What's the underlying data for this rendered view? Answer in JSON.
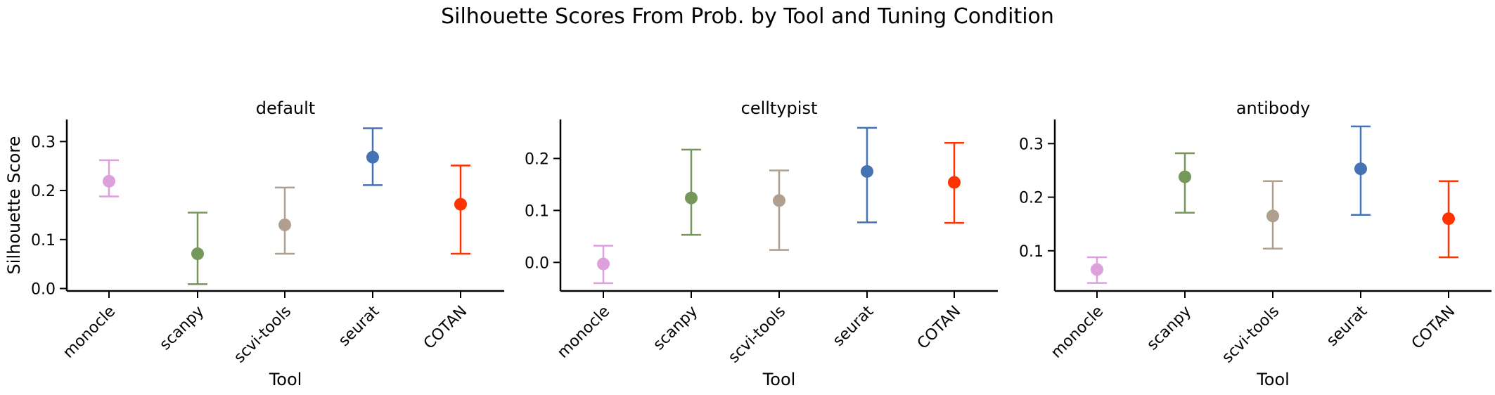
{
  "title": "Silhouette Scores From Prob. by Tool and Tuning Condition",
  "colors": {
    "monocle": "#DDA0DD",
    "scanpy": "#76975A",
    "scvi-tools": "#B09F8F",
    "seurat": "#4472B4",
    "COTAN": "#FF3300"
  },
  "chart_data": [
    {
      "type": "scatter",
      "title": "default",
      "xlabel": "Tool",
      "ylabel": "Silhouette Score",
      "categories": [
        "monocle",
        "scanpy",
        "scvi-tools",
        "seurat",
        "COTAN"
      ],
      "values": [
        0.219,
        0.071,
        0.13,
        0.268,
        0.172
      ],
      "err_low": [
        0.188,
        0.009,
        0.071,
        0.211,
        0.071
      ],
      "err_high": [
        0.262,
        0.155,
        0.206,
        0.327,
        0.251
      ],
      "ylim": [
        -0.005,
        0.345
      ],
      "yticks": [
        0.0,
        0.1,
        0.2,
        0.3
      ],
      "ytick_labels": [
        "0.0",
        "0.1",
        "0.2",
        "0.3"
      ]
    },
    {
      "type": "scatter",
      "title": "celltypist",
      "xlabel": "Tool",
      "ylabel": "",
      "categories": [
        "monocle",
        "scanpy",
        "scvi-tools",
        "seurat",
        "COTAN"
      ],
      "values": [
        -0.003,
        0.124,
        0.119,
        0.175,
        0.154
      ],
      "err_low": [
        -0.04,
        0.053,
        0.024,
        0.077,
        0.076
      ],
      "err_high": [
        0.032,
        0.217,
        0.177,
        0.259,
        0.23
      ],
      "ylim": [
        -0.055,
        0.275
      ],
      "yticks": [
        0.0,
        0.1,
        0.2
      ],
      "ytick_labels": [
        "0.0",
        "0.1",
        "0.2"
      ]
    },
    {
      "type": "scatter",
      "title": "antibody",
      "xlabel": "Tool",
      "ylabel": "",
      "categories": [
        "monocle",
        "scanpy",
        "scvi-tools",
        "seurat",
        "COTAN"
      ],
      "values": [
        0.065,
        0.238,
        0.165,
        0.253,
        0.16
      ],
      "err_low": [
        0.04,
        0.171,
        0.104,
        0.167,
        0.088
      ],
      "err_high": [
        0.088,
        0.282,
        0.23,
        0.332,
        0.23
      ],
      "ylim": [
        0.025,
        0.345
      ],
      "yticks": [
        0.1,
        0.2,
        0.3
      ],
      "ytick_labels": [
        "0.1",
        "0.2",
        "0.3"
      ]
    }
  ]
}
